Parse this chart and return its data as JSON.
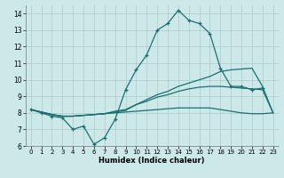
{
  "xlabel": "Humidex (Indice chaleur)",
  "bg_color": "#cce8e8",
  "grid_color": "#aacccc",
  "line_color": "#1a7070",
  "xlim": [
    -0.5,
    23.5
  ],
  "ylim": [
    6,
    14.5
  ],
  "xticks": [
    0,
    1,
    2,
    3,
    4,
    5,
    6,
    7,
    8,
    9,
    10,
    11,
    12,
    13,
    14,
    15,
    16,
    17,
    18,
    19,
    20,
    21,
    22,
    23
  ],
  "yticks": [
    6,
    7,
    8,
    9,
    10,
    11,
    12,
    13,
    14
  ],
  "series": [
    {
      "x": [
        0,
        1,
        2,
        3,
        4,
        5,
        6,
        7,
        8,
        9,
        10,
        11,
        12,
        13,
        14,
        15,
        16,
        17,
        18,
        19,
        20,
        21,
        22
      ],
      "y": [
        8.2,
        8.0,
        7.8,
        7.7,
        7.0,
        7.2,
        6.1,
        6.5,
        7.6,
        9.4,
        10.6,
        11.5,
        13.0,
        13.4,
        14.2,
        13.6,
        13.4,
        12.8,
        10.7,
        9.6,
        9.6,
        9.4,
        9.5
      ],
      "marker": true
    },
    {
      "x": [
        0,
        1,
        2,
        3,
        4,
        5,
        6,
        7,
        8,
        9,
        10,
        11,
        12,
        13,
        14,
        15,
        16,
        17,
        18,
        19,
        20,
        21,
        22,
        23
      ],
      "y": [
        8.2,
        8.05,
        7.9,
        7.8,
        7.8,
        7.85,
        7.9,
        7.95,
        8.05,
        8.15,
        8.5,
        8.8,
        9.1,
        9.3,
        9.6,
        9.8,
        10.0,
        10.2,
        10.5,
        10.6,
        10.65,
        10.7,
        9.6,
        8.0
      ],
      "marker": false,
      "lw": 0.9
    },
    {
      "x": [
        0,
        1,
        2,
        3,
        4,
        5,
        6,
        7,
        8,
        9,
        10,
        11,
        12,
        13,
        14,
        15,
        16,
        17,
        18,
        19,
        20,
        21,
        22,
        23
      ],
      "y": [
        8.2,
        8.05,
        7.9,
        7.8,
        7.8,
        7.85,
        7.9,
        7.95,
        8.1,
        8.2,
        8.5,
        8.7,
        8.95,
        9.1,
        9.3,
        9.45,
        9.55,
        9.6,
        9.6,
        9.55,
        9.5,
        9.45,
        9.4,
        8.0
      ],
      "marker": false,
      "lw": 0.9
    },
    {
      "x": [
        0,
        1,
        2,
        3,
        4,
        5,
        6,
        7,
        8,
        9,
        10,
        11,
        12,
        13,
        14,
        15,
        16,
        17,
        18,
        19,
        20,
        21,
        22,
        23
      ],
      "y": [
        8.2,
        8.05,
        7.9,
        7.8,
        7.8,
        7.85,
        7.9,
        7.95,
        8.0,
        8.05,
        8.1,
        8.15,
        8.2,
        8.25,
        8.3,
        8.3,
        8.3,
        8.3,
        8.2,
        8.1,
        8.0,
        7.95,
        7.95,
        8.0
      ],
      "marker": false,
      "lw": 0.9
    }
  ]
}
